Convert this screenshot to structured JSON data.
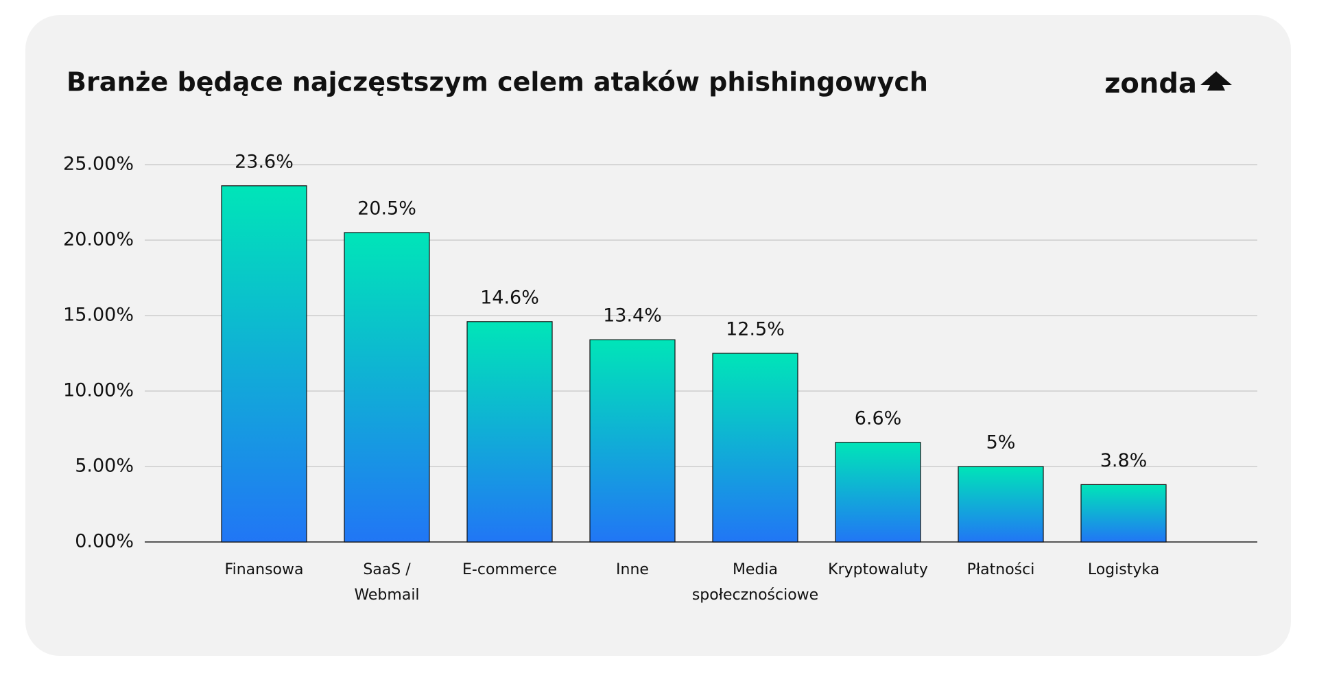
{
  "chart_data": {
    "type": "bar",
    "title": "Branże będące najczęstszym celem ataków phishingowych",
    "logo": "zonda",
    "categories": [
      "Finansowa",
      "SaaS / Webmail",
      "E-commerce",
      "Inne",
      "Media społecznościowe",
      "Kryptowaluty",
      "Płatności",
      "Logistyka"
    ],
    "values": [
      23.6,
      20.5,
      14.6,
      13.4,
      12.5,
      6.6,
      5,
      3.8
    ],
    "value_labels": [
      "23.6%",
      "20.5%",
      "14.6%",
      "13.4%",
      "12.5%",
      "6.6%",
      "5%",
      "3.8%"
    ],
    "color": [
      "#00e5b8",
      "#2176f5"
    ],
    "ylim": [
      0,
      25
    ],
    "yticks": [
      {
        "value": 0,
        "label": "0.00%"
      },
      {
        "value": 5,
        "label": "5.00%"
      },
      {
        "value": 10,
        "label": "10.00%"
      },
      {
        "value": 15,
        "label": "15.00%"
      },
      {
        "value": 20,
        "label": "20.00%"
      },
      {
        "value": 25,
        "label": "25.00%"
      }
    ],
    "grid": true
  }
}
